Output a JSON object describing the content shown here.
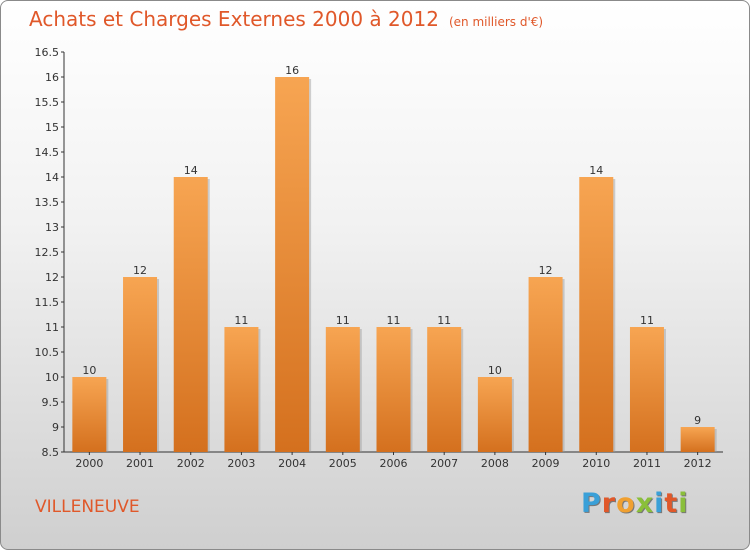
{
  "header": {
    "title": "Achats et Charges Externes 2000 à 2012",
    "subtitle": "(en milliers d'€)"
  },
  "footer": {
    "city": "VILLENEUVE",
    "brand_letters": [
      "P",
      "r",
      "o",
      "x",
      "i",
      "t",
      "i"
    ]
  },
  "colors": {
    "title": "#e0582a",
    "bar_top": "#f7a552",
    "bar_bottom": "#d4701e",
    "logo": [
      "#3aa0d8",
      "#e0582a",
      "#f0a030",
      "#8abf3a",
      "#3aa0d8",
      "#e0582a",
      "#8abf3a"
    ]
  },
  "chart_data": {
    "type": "bar",
    "title": "Achats et Charges Externes 2000 à 2012",
    "subtitle": "(en milliers d'€)",
    "categories": [
      "2000",
      "2001",
      "2002",
      "2003",
      "2004",
      "2005",
      "2006",
      "2007",
      "2008",
      "2009",
      "2010",
      "2011",
      "2012"
    ],
    "values": [
      10,
      12,
      14,
      11,
      16,
      11,
      11,
      11,
      10,
      12,
      14,
      11,
      9
    ],
    "ylim": [
      8.5,
      16.5
    ],
    "yticks": [
      "8.5",
      "9",
      "9.5",
      "10",
      "10.5",
      "11",
      "11.5",
      "12",
      "12.5",
      "13",
      "13.5",
      "14",
      "14.5",
      "15",
      "15.5",
      "16",
      "16.5"
    ],
    "grid": false,
    "legend": "none"
  }
}
